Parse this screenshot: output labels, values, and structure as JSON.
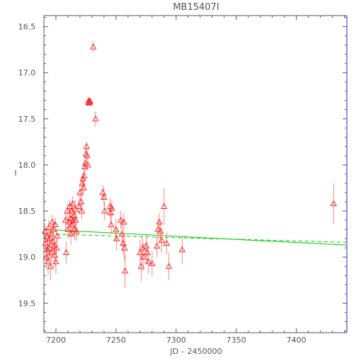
{
  "chart_data": {
    "type": "scatter",
    "title": "MB15407I",
    "xlabel": "JD – 2450000",
    "ylabel": "I",
    "xlim": [
      7190,
      7442
    ],
    "ylim": [
      19.82,
      16.38
    ],
    "y_inverted": true,
    "x_ticks": [
      7200,
      7250,
      7300,
      7350,
      7400
    ],
    "x_tick_labels": [
      "7200",
      "7250",
      "7300",
      "7350",
      "7400"
    ],
    "y_ticks": [
      16.5,
      17.0,
      17.5,
      18.0,
      18.5,
      19.0,
      19.5
    ],
    "y_tick_labels": [
      "16.5",
      "17.0",
      "17.5",
      "18.0",
      "18.5",
      "19.0",
      "19.5"
    ],
    "grid": false,
    "colors": {
      "points": "#ff0000",
      "errorbars": "#ff6666",
      "fit": "#00cc00",
      "frame": "#555555",
      "right_edge": "#7070d0"
    },
    "lines": [
      {
        "style": "solid",
        "x": [
          7190,
          7442
        ],
        "y": [
          18.7,
          18.87
        ]
      },
      {
        "style": "dashed",
        "x": [
          7190,
          7442
        ],
        "y": [
          18.75,
          18.84
        ]
      }
    ],
    "points": [
      [
        7191,
        18.72,
        0.08
      ],
      [
        7191.5,
        18.85,
        0.09
      ],
      [
        7192,
        19.0,
        0.12
      ],
      [
        7192.5,
        18.78,
        0.1
      ],
      [
        7193,
        18.92,
        0.12
      ],
      [
        7193.5,
        19.05,
        0.14
      ],
      [
        7194,
        18.68,
        0.08
      ],
      [
        7194.5,
        18.9,
        0.12
      ],
      [
        7195,
        18.8,
        0.1
      ],
      [
        7195.5,
        19.1,
        0.15
      ],
      [
        7196,
        18.75,
        0.09
      ],
      [
        7196.5,
        18.95,
        0.11
      ],
      [
        7197,
        18.62,
        0.08
      ],
      [
        7197.5,
        18.83,
        0.1
      ],
      [
        7198,
        18.7,
        0.08
      ],
      [
        7198.5,
        18.88,
        0.1
      ],
      [
        7199,
        18.98,
        0.13
      ],
      [
        7199.5,
        18.65,
        0.08
      ],
      [
        7200,
        19.05,
        0.13
      ],
      [
        7200.5,
        18.9,
        0.1
      ],
      [
        7201,
        18.77,
        0.08
      ],
      [
        7208,
        18.6,
        0.1
      ],
      [
        7208.5,
        18.95,
        0.12
      ],
      [
        7209.5,
        18.5,
        0.08
      ],
      [
        7210,
        18.7,
        0.1
      ],
      [
        7211,
        18.62,
        0.1
      ],
      [
        7211.5,
        18.45,
        0.08
      ],
      [
        7212,
        18.58,
        0.09
      ],
      [
        7212.5,
        18.75,
        0.12
      ],
      [
        7213,
        18.5,
        0.1
      ],
      [
        7213.5,
        18.65,
        0.1
      ],
      [
        7214,
        18.42,
        0.08
      ],
      [
        7214.5,
        18.6,
        0.1
      ],
      [
        7215,
        18.55,
        0.09
      ],
      [
        7215.5,
        18.7,
        0.12
      ],
      [
        7216,
        18.48,
        0.1
      ],
      [
        7216.5,
        18.6,
        0.1
      ],
      [
        7217,
        18.72,
        0.1
      ],
      [
        7219,
        18.45,
        0.08
      ],
      [
        7220,
        18.3,
        0.08
      ],
      [
        7221,
        18.4,
        0.1
      ],
      [
        7221.5,
        18.5,
        0.09
      ],
      [
        7222,
        18.2,
        0.08
      ],
      [
        7222.5,
        18.15,
        0.07
      ],
      [
        7223,
        18.25,
        0.08
      ],
      [
        7223.5,
        18.12,
        0.07
      ],
      [
        7224,
        18.02,
        0.06
      ],
      [
        7224.5,
        17.98,
        0.05
      ],
      [
        7225,
        17.88,
        0.05
      ],
      [
        7225.5,
        17.8,
        0.05
      ],
      [
        7226,
        17.9,
        0.05
      ],
      [
        7226.5,
        18.0,
        0.06
      ],
      [
        7227,
        17.32,
        0.03
      ],
      [
        7227.5,
        17.3,
        0.03
      ],
      [
        7228,
        17.33,
        0.03
      ],
      [
        7228.5,
        17.31,
        0.03
      ],
      [
        7231,
        16.72,
        0.06
      ],
      [
        7233,
        17.5,
        0.08
      ],
      [
        7239,
        18.3,
        0.08
      ],
      [
        7240,
        18.35,
        0.1
      ],
      [
        7240.5,
        18.5,
        0.1
      ],
      [
        7245,
        18.45,
        0.09
      ],
      [
        7245.5,
        18.52,
        0.1
      ],
      [
        7246,
        18.65,
        0.1
      ],
      [
        7246.5,
        18.47,
        0.08
      ],
      [
        7250,
        18.7,
        0.12
      ],
      [
        7250.5,
        18.8,
        0.12
      ],
      [
        7254,
        18.6,
        0.1
      ],
      [
        7255,
        18.75,
        0.12
      ],
      [
        7256,
        18.85,
        0.12
      ],
      [
        7256.5,
        18.62,
        0.1
      ],
      [
        7257,
        18.9,
        0.13
      ],
      [
        7257.5,
        19.15,
        0.18
      ],
      [
        7270,
        18.95,
        0.14
      ],
      [
        7271,
        19.1,
        0.16
      ],
      [
        7272,
        18.9,
        0.13
      ],
      [
        7273,
        19.0,
        0.15
      ],
      [
        7275,
        18.88,
        0.12
      ],
      [
        7276,
        18.95,
        0.12
      ],
      [
        7277,
        19.05,
        0.13
      ],
      [
        7280,
        19.07,
        0.14
      ],
      [
        7284,
        18.88,
        0.12
      ],
      [
        7285,
        18.7,
        0.1
      ],
      [
        7286,
        18.62,
        0.1
      ],
      [
        7287,
        18.72,
        0.12
      ],
      [
        7288,
        18.82,
        0.13
      ],
      [
        7290,
        18.45,
        0.2
      ],
      [
        7292,
        18.85,
        0.12
      ],
      [
        7294,
        19.1,
        0.15
      ],
      [
        7305,
        18.92,
        0.15
      ],
      [
        7431,
        18.42,
        0.22
      ]
    ]
  }
}
